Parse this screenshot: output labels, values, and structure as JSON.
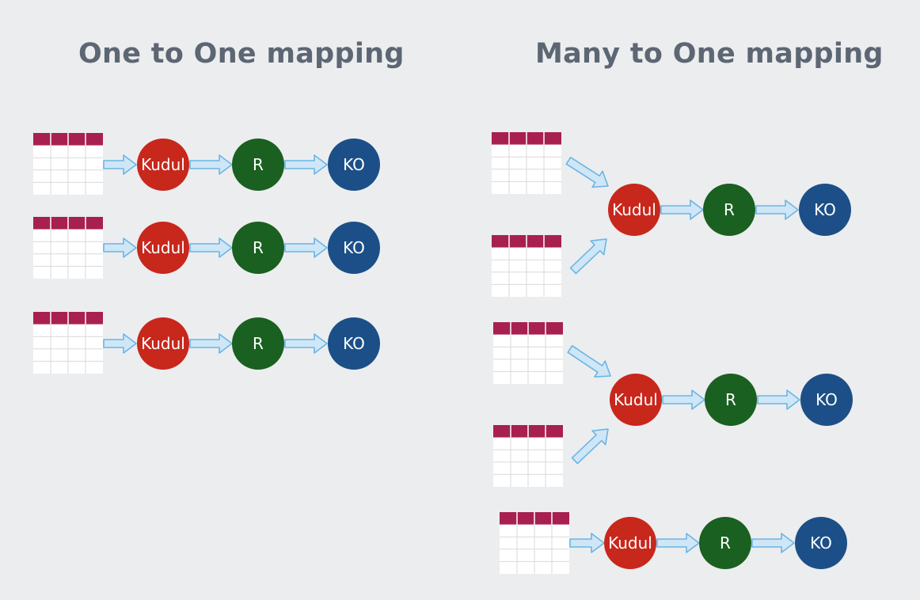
{
  "titles": {
    "left": "One to One mapping",
    "right": "Many to One mapping"
  },
  "nodes": {
    "kudu": "Kudul",
    "r": "R",
    "ko": "KO"
  },
  "colors": {
    "background": "#ecedef",
    "title": "#5d6673",
    "table_header": "#a8204f",
    "table_grid": "#d9d9d9",
    "arrow_fill": "#cfe6f7",
    "arrow_stroke": "#6ab5e4",
    "kudu": "#c8271c",
    "r": "#1a6020",
    "ko": "#1c4f87"
  }
}
